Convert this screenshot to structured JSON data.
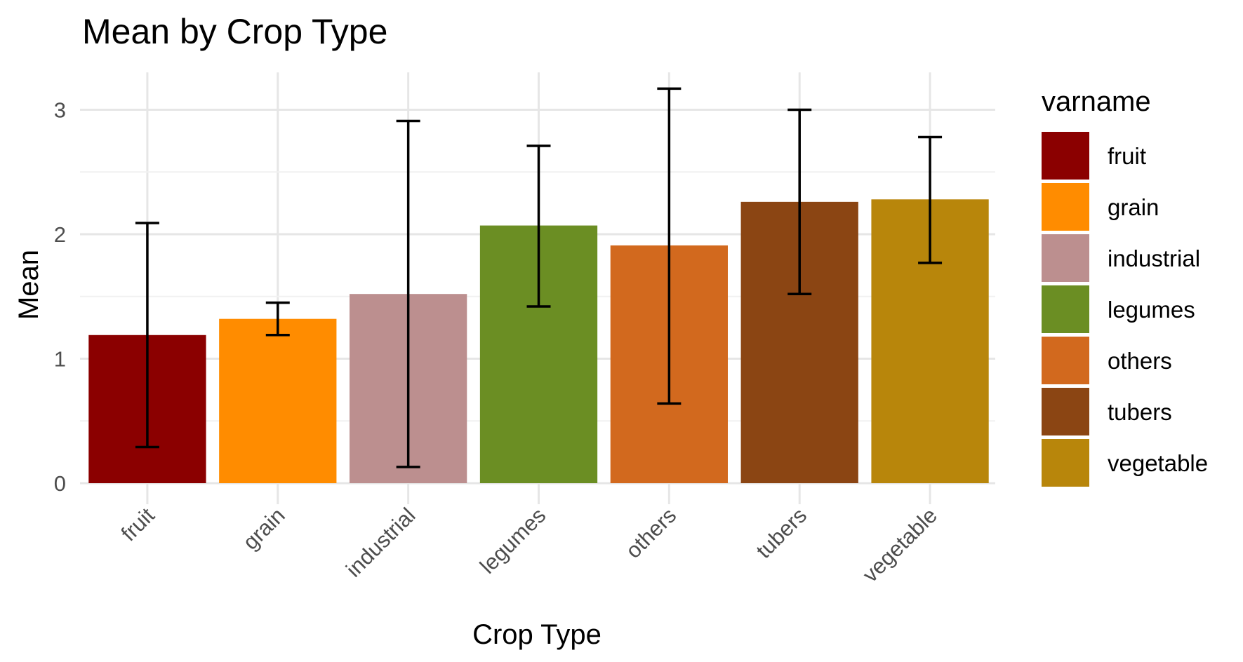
{
  "chart_data": {
    "type": "bar",
    "title": "Mean by Crop Type",
    "xlabel": "Crop Type",
    "ylabel": "Mean",
    "ylim": [
      0,
      3.3
    ],
    "y_ticks": [
      0,
      1,
      2,
      3
    ],
    "grid": true,
    "categories": [
      "fruit",
      "grain",
      "industrial",
      "legumes",
      "others",
      "tubers",
      "vegetable"
    ],
    "values": [
      1.19,
      1.32,
      1.52,
      2.07,
      1.91,
      2.26,
      2.28
    ],
    "error_low": [
      0.29,
      1.19,
      0.13,
      1.42,
      0.64,
      1.52,
      1.77
    ],
    "error_high": [
      2.09,
      1.45,
      2.91,
      2.71,
      3.17,
      3.0,
      2.78
    ],
    "colors": [
      "#8b0000",
      "#ff8c00",
      "#bc8f8f",
      "#6b8e23",
      "#d2691e",
      "#8b4513",
      "#b8860b"
    ],
    "legend": {
      "title": "varname",
      "position": "right",
      "entries": [
        "fruit",
        "grain",
        "industrial",
        "legumes",
        "others",
        "tubers",
        "vegetable"
      ]
    }
  }
}
